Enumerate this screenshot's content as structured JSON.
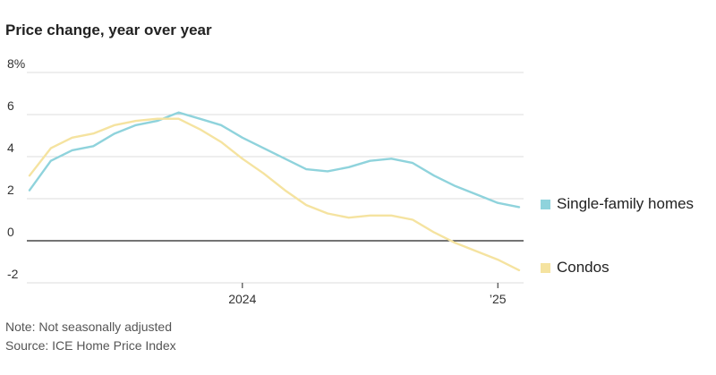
{
  "title": "Price change, year over year",
  "chart_data": {
    "type": "line",
    "title": "Price change, year over year",
    "y_unit_label": "8%",
    "yticks": [
      "8%",
      "6",
      "4",
      "2",
      "0",
      "-2"
    ],
    "ytick_values": [
      8,
      6,
      4,
      2,
      0,
      -2
    ],
    "xticks": [
      "2024",
      "’25"
    ],
    "xtick_dates": [
      "2024-01",
      "2025-01"
    ],
    "ylim": [
      -2,
      8
    ],
    "xlim": [
      "2023-03",
      "2025-04"
    ],
    "grid": true,
    "legend_position": "right",
    "x": [
      "2023-03",
      "2023-04",
      "2023-05",
      "2023-06",
      "2023-07",
      "2023-08",
      "2023-09",
      "2023-10",
      "2023-11",
      "2023-12",
      "2024-01",
      "2024-02",
      "2024-03",
      "2024-04",
      "2024-05",
      "2024-06",
      "2024-07",
      "2024-08",
      "2024-09",
      "2024-10",
      "2024-11",
      "2024-12",
      "2025-01",
      "2025-02",
      "2025-03",
      "2025-04",
      "2025-05",
      "2025-06"
    ],
    "series": [
      {
        "name": "Single-family homes",
        "color": "#8fd3dc",
        "values": [
          2.4,
          3.8,
          4.3,
          4.5,
          5.1,
          5.5,
          5.7,
          6.1,
          5.8,
          5.5,
          4.9,
          4.4,
          3.9,
          3.4,
          3.3,
          3.5,
          3.8,
          3.9,
          3.7,
          3.1,
          2.6,
          2.2,
          1.8,
          1.6,
          null,
          null,
          null,
          null
        ]
      },
      {
        "name": "Condos",
        "color": "#f5e3a0",
        "values": [
          3.1,
          4.4,
          4.9,
          5.1,
          5.5,
          5.7,
          5.8,
          5.8,
          5.3,
          4.7,
          3.9,
          3.2,
          2.4,
          1.7,
          1.3,
          1.1,
          1.2,
          1.2,
          1.0,
          0.4,
          -0.1,
          -0.5,
          -0.9,
          -1.4,
          null,
          null,
          null,
          null
        ]
      }
    ]
  },
  "notes": {
    "note": "Note: Not seasonally adjusted",
    "source": "Source: ICE Home Price Index"
  }
}
